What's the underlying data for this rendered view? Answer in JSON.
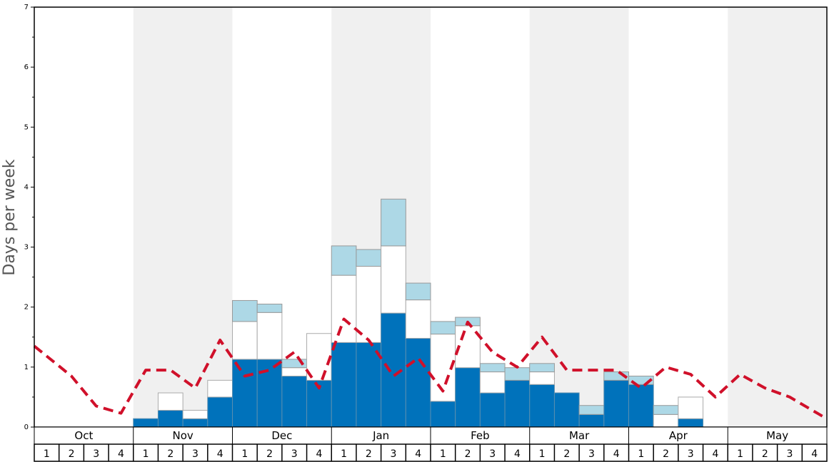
{
  "chart_data": {
    "type": "bar",
    "ylabel": "Days per week",
    "ylim": [
      0,
      7
    ],
    "yticks": [
      "0",
      "1",
      "2",
      "3",
      "4",
      "5",
      "6",
      "7"
    ],
    "months": [
      "Oct",
      "Nov",
      "Dec",
      "Jan",
      "Feb",
      "Mar",
      "Apr",
      "May"
    ],
    "weeks": [
      "1",
      "2",
      "3",
      "4"
    ],
    "shaded_months": [
      "Nov",
      "Jan",
      "Mar",
      "May"
    ],
    "colors": {
      "dark_bar": "#0072bb",
      "white_bar": "#ffffff",
      "light_bar": "#add8e6",
      "dashed_line": "#d0102a",
      "shading": "#f0f0f0"
    },
    "series": [
      {
        "values": [
          0,
          0,
          0,
          0,
          0.14,
          0.28,
          0.14,
          0.5,
          1.13,
          1.13,
          0.85,
          0.78,
          1.41,
          1.41,
          1.9,
          1.48,
          0.43,
          0.99,
          0.57,
          0.78,
          0.71,
          0.57,
          0.21,
          0.78,
          0.71,
          0,
          0.14,
          0,
          0,
          0,
          0,
          0
        ]
      },
      {
        "values": [
          0,
          0,
          0,
          0,
          0,
          0.29,
          0.14,
          0.28,
          0.63,
          0.78,
          0.14,
          0.78,
          1.12,
          1.27,
          1.12,
          0.64,
          1.12,
          0.7,
          0.35,
          0,
          0.21,
          0,
          0,
          0,
          0,
          0.21,
          0.36,
          0,
          0,
          0,
          0,
          0
        ]
      },
      {
        "values": [
          0,
          0,
          0,
          0,
          0,
          0,
          0,
          0,
          0.35,
          0.14,
          0.14,
          0,
          0.49,
          0.28,
          0.78,
          0.28,
          0.21,
          0.14,
          0.14,
          0.21,
          0.14,
          0,
          0.15,
          0.14,
          0.14,
          0.15,
          0,
          0,
          0,
          0,
          0,
          0
        ]
      },
      {
        "style": "dashed",
        "values": [
          1.35,
          0.85,
          0.35,
          0.23,
          0.95,
          0.95,
          0.65,
          1.45,
          0.85,
          0.95,
          1.25,
          0.65,
          1.8,
          1.45,
          0.85,
          1.15,
          0.6,
          1.75,
          1.25,
          1.0,
          1.5,
          0.95,
          0.95,
          0.95,
          0.65,
          1.0,
          0.88,
          0.5,
          0.88,
          0.65,
          0.5,
          0.18
        ]
      }
    ]
  }
}
